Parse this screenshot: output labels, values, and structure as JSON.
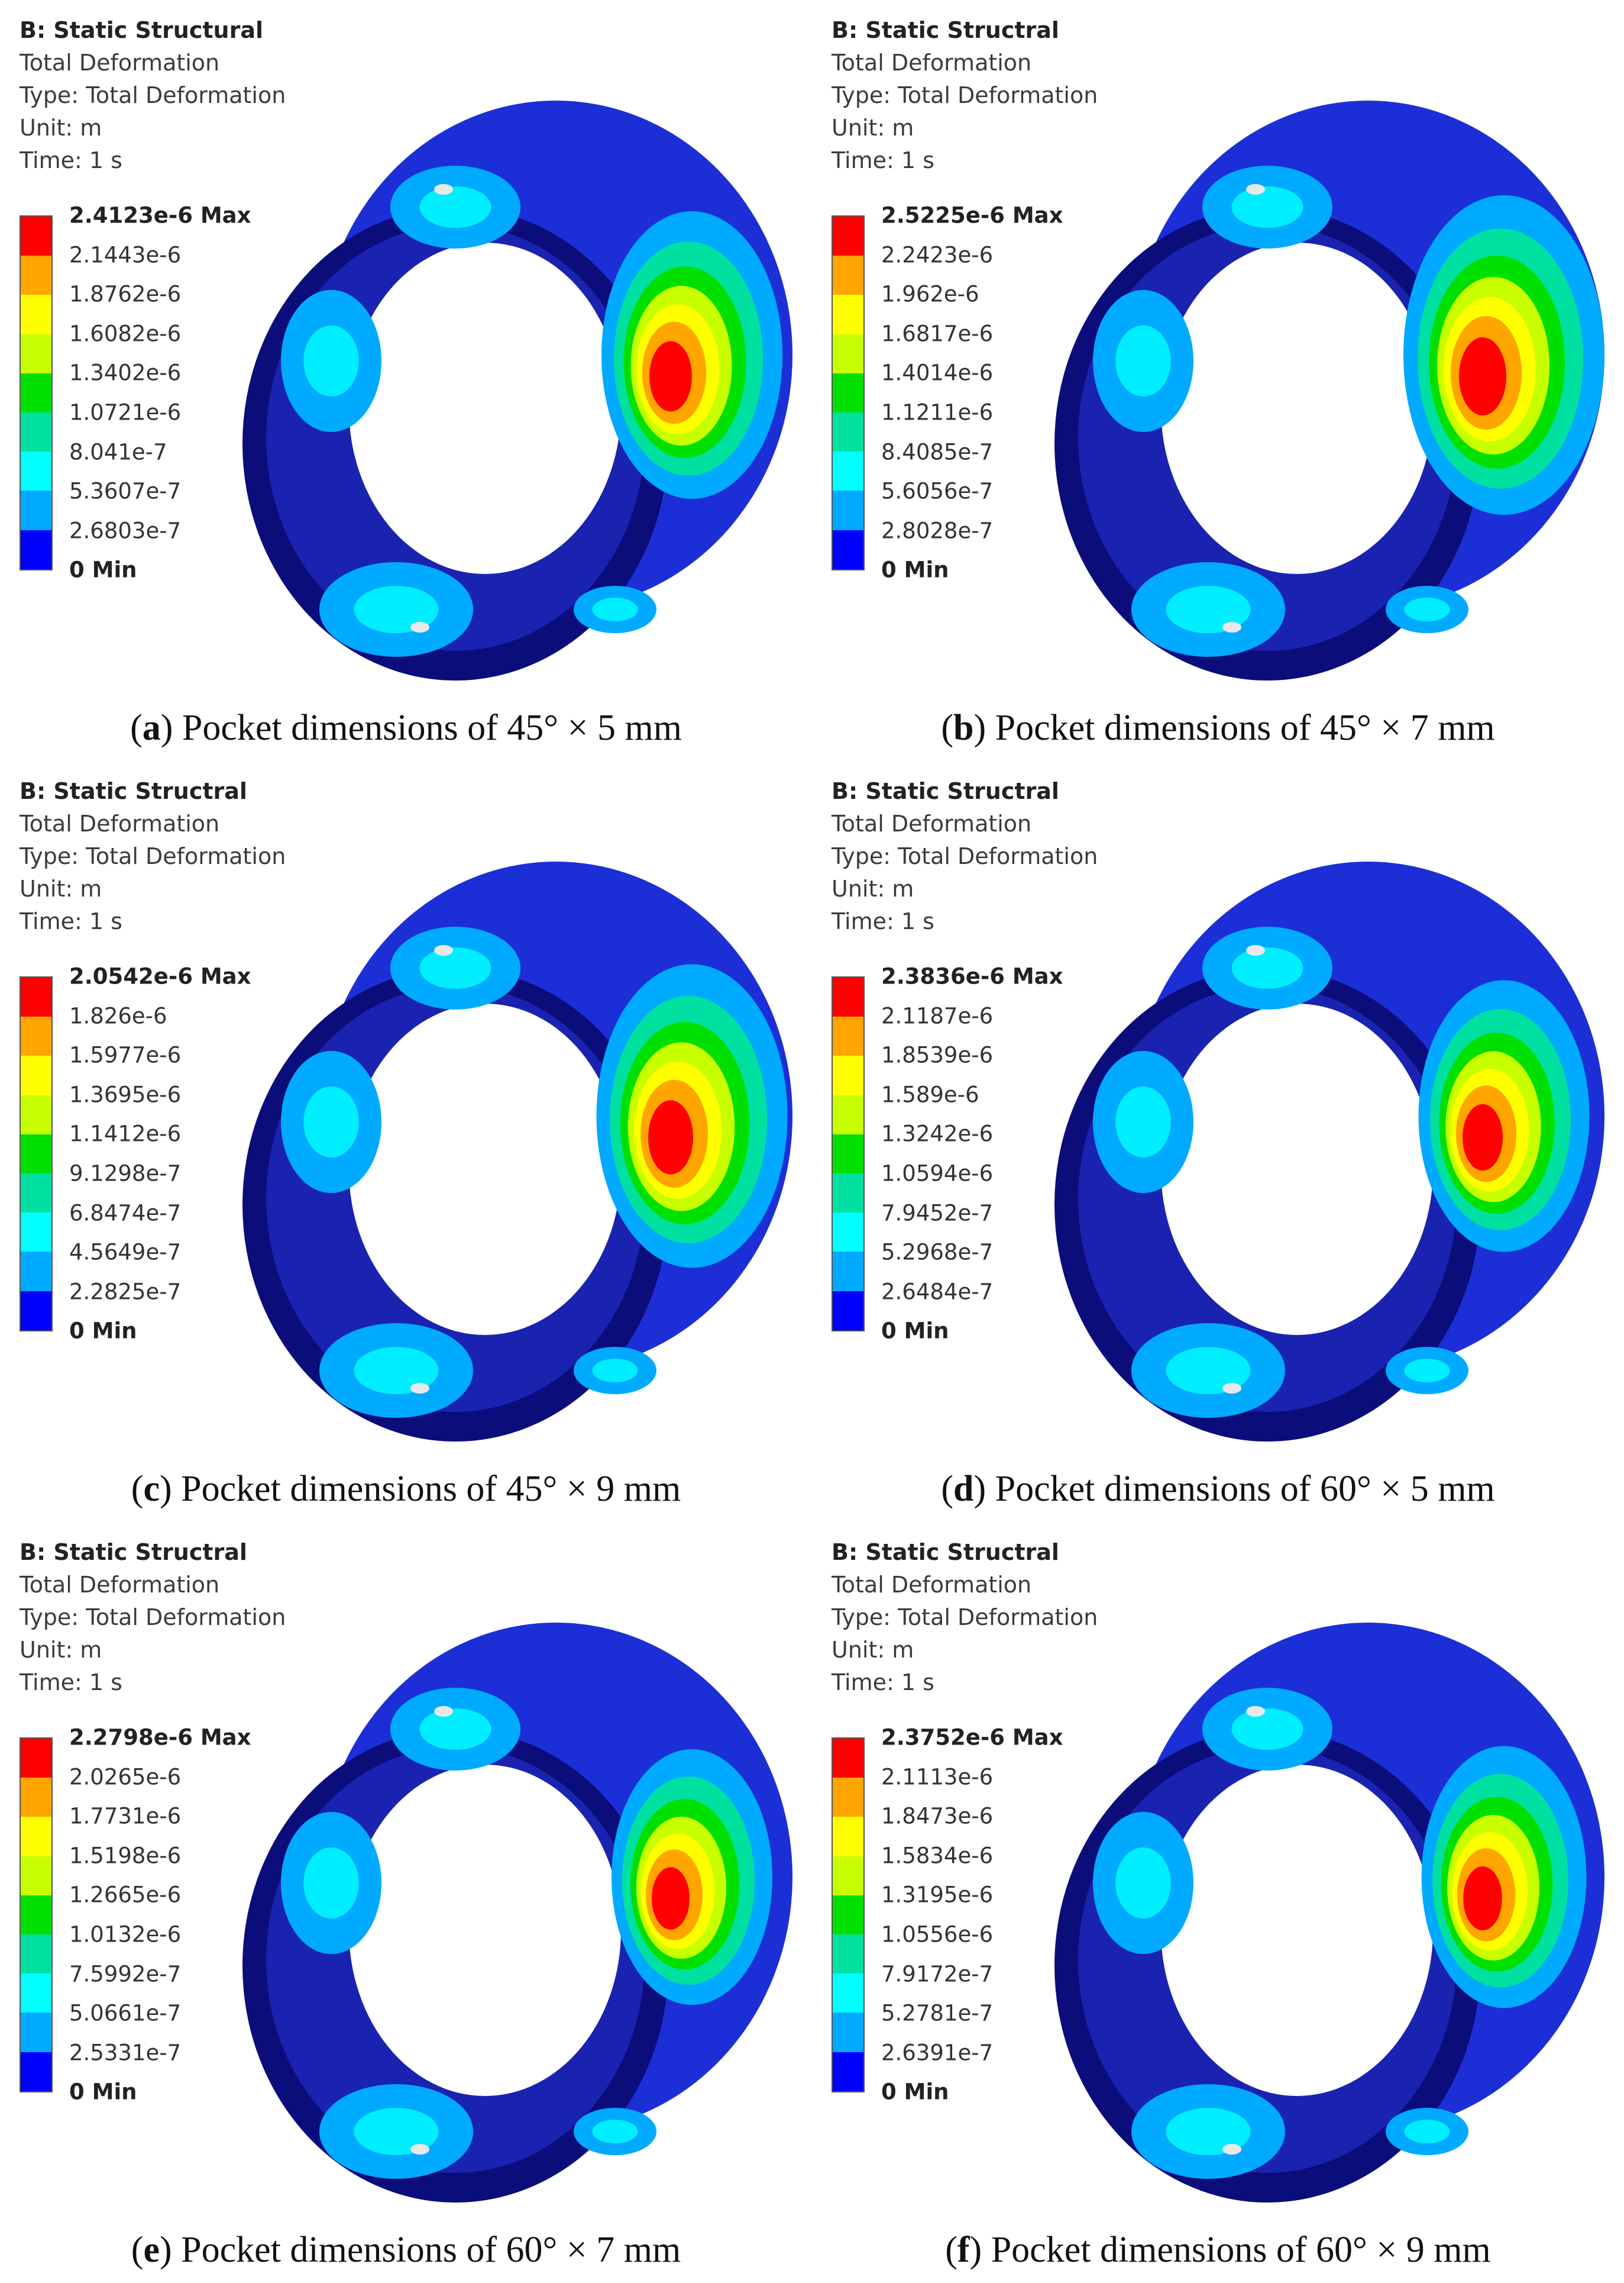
{
  "panels": [
    {
      "id": "a",
      "info": {
        "title": "B: Static Structural",
        "result": "Total Deformation",
        "type": "Type: Total Deformation",
        "unit": "Unit: m",
        "time": "Time: 1 s"
      },
      "legend": [
        "2.4123e-6 Max",
        "2.1443e-6",
        "1.8762e-6",
        "1.6082e-6",
        "1.3402e-6",
        "1.0721e-6",
        "8.041e-7",
        "5.3607e-7",
        "2.6803e-7",
        "0 Min"
      ],
      "caption": {
        "letter": "a",
        "text": "Pocket dimensions of 45° × 5 mm"
      },
      "hot_size": 0.9
    },
    {
      "id": "b",
      "info": {
        "title": "B: Static Structral",
        "result": "Total Deformation",
        "type": "Type: Total Deformation",
        "unit": "Unit: m",
        "time": "Time: 1 s"
      },
      "legend": [
        "2.5225e-6 Max",
        "2.2423e-6",
        "1.962e-6",
        "1.6817e-6",
        "1.4014e-6",
        "1.1211e-6",
        "8.4085e-7",
        "5.6056e-7",
        "2.8028e-7",
        "0 Min"
      ],
      "caption": {
        "letter": "b",
        "text": "Pocket dimensions of 45° × 7 mm"
      },
      "hot_size": 1.0
    },
    {
      "id": "c",
      "info": {
        "title": "B: Static Structral",
        "result": "Total Deformation",
        "type": "Type: Total Deformation",
        "unit": "Unit: m",
        "time": "Time: 1 s"
      },
      "legend": [
        "2.0542e-6 Max",
        "1.826e-6",
        "1.5977e-6",
        "1.3695e-6",
        "1.1412e-6",
        "9.1298e-7",
        "6.8474e-7",
        "4.5649e-7",
        "2.2825e-7",
        "0 Min"
      ],
      "caption": {
        "letter": "c",
        "text": "Pocket dimensions of 45° × 9 mm"
      },
      "hot_size": 0.95
    },
    {
      "id": "d",
      "info": {
        "title": "B: Static Structral",
        "result": "Total Deformation",
        "type": "Type: Total Deformation",
        "unit": "Unit: m",
        "time": "Time: 1 s"
      },
      "legend": [
        "2.3836e-6 Max",
        "2.1187e-6",
        "1.8539e-6",
        "1.589e-6",
        "1.3242e-6",
        "1.0594e-6",
        "7.9452e-7",
        "5.2968e-7",
        "2.6484e-7",
        "0 Min"
      ],
      "caption": {
        "letter": "d",
        "text": "Pocket dimensions of 60° × 5 mm"
      },
      "hot_size": 0.85
    },
    {
      "id": "e",
      "info": {
        "title": "B: Static Structral",
        "result": "Total Deformation",
        "type": "Type: Total Deformation",
        "unit": "Unit: m",
        "time": "Time: 1 s"
      },
      "legend": [
        "2.2798e-6 Max",
        "2.0265e-6",
        "1.7731e-6",
        "1.5198e-6",
        "1.2665e-6",
        "1.0132e-6",
        "7.5992e-7",
        "5.0661e-7",
        "2.5331e-7",
        "0 Min"
      ],
      "caption": {
        "letter": "e",
        "text": "Pocket dimensions of 60° × 7 mm"
      },
      "hot_size": 0.8
    },
    {
      "id": "f",
      "info": {
        "title": "B: Static Structral",
        "result": "Total Deformation",
        "type": "Type: Total Deformation",
        "unit": "Unit: m",
        "time": "Time: 1 s"
      },
      "legend": [
        "2.3752e-6 Max",
        "2.1113e-6",
        "1.8473e-6",
        "1.5834e-6",
        "1.3195e-6",
        "1.0556e-6",
        "7.9172e-7",
        "5.2781e-7",
        "2.6391e-7",
        "0 Min"
      ],
      "caption": {
        "letter": "f",
        "text": "Pocket dimensions of 60° × 9 mm"
      },
      "hot_size": 0.82
    }
  ],
  "colors": {
    "scale": [
      "#ff0000",
      "#ffa500",
      "#ffff00",
      "#c8ff00",
      "#00e000",
      "#00e0a0",
      "#00ffff",
      "#00aaff",
      "#0000ff"
    ],
    "ring_dark": "#0a0d7a",
    "ring_mid": "#1c2fd6",
    "ring_inner": "#1a23b0"
  }
}
